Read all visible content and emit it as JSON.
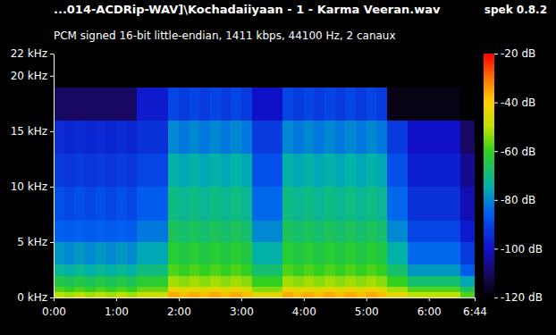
{
  "chart_data": {
    "type": "heatmap",
    "title": "...014-ACDRip-WAV]\\Kochadaiiyaan - 1 - Karma Veeran.wav",
    "annotation": "spek 0.8.2",
    "subtitle": "PCM signed 16-bit little-endian, 1411 kbps, 44100 Hz, 2 canaux",
    "xlim": [
      0,
      404
    ],
    "xticks": [
      {
        "value": 0,
        "label": "0:00"
      },
      {
        "value": 60,
        "label": "1:00"
      },
      {
        "value": 120,
        "label": "2:00"
      },
      {
        "value": 180,
        "label": "3:00"
      },
      {
        "value": 240,
        "label": "4:00"
      },
      {
        "value": 300,
        "label": "5:00"
      },
      {
        "value": 360,
        "label": "6:00"
      },
      {
        "value": 404,
        "label": "6:44"
      }
    ],
    "ylim": [
      0,
      22
    ],
    "yticks": [
      {
        "value": 0,
        "label": "0 kHz"
      },
      {
        "value": 5,
        "label": "5 kHz"
      },
      {
        "value": 10,
        "label": "10 kHz"
      },
      {
        "value": 15,
        "label": "15 kHz"
      },
      {
        "value": 20,
        "label": "20 kHz"
      },
      {
        "value": 22,
        "label": "22 kHz"
      }
    ],
    "colorbar_range": [
      -120,
      -20
    ],
    "colorbar_ticks": [
      {
        "value": -20,
        "label": "-20 dB"
      },
      {
        "value": -40,
        "label": "-40 dB"
      },
      {
        "value": -60,
        "label": "-60 dB"
      },
      {
        "value": -80,
        "label": "-80 dB"
      },
      {
        "value": -100,
        "label": "-100 dB"
      },
      {
        "value": -120,
        "label": "-120 dB"
      }
    ],
    "x_edges": [
      0,
      10,
      20,
      30,
      40,
      50,
      60,
      70,
      80,
      90,
      100,
      110,
      120,
      130,
      140,
      150,
      160,
      170,
      180,
      190,
      200,
      210,
      220,
      230,
      240,
      250,
      260,
      270,
      280,
      290,
      300,
      310,
      320,
      330,
      340,
      350,
      360,
      370,
      380,
      390,
      400,
      404
    ],
    "y_edges": [
      0,
      0.5,
      1,
      2,
      3,
      5,
      7,
      10,
      13,
      16,
      19,
      22
    ],
    "cells": [
      [
        -50,
        -58,
        -64,
        -72,
        -78,
        -85,
        -88,
        -92,
        -95,
        -110,
        -120
      ],
      [
        -52,
        -60,
        -66,
        -74,
        -80,
        -86,
        -90,
        -93,
        -96,
        -110,
        -120
      ],
      [
        -50,
        -58,
        -64,
        -72,
        -78,
        -85,
        -88,
        -92,
        -95,
        -110,
        -120
      ],
      [
        -52,
        -60,
        -66,
        -74,
        -80,
        -86,
        -90,
        -93,
        -96,
        -110,
        -120
      ],
      [
        -50,
        -58,
        -64,
        -72,
        -78,
        -85,
        -88,
        -92,
        -95,
        -110,
        -120
      ],
      [
        -52,
        -60,
        -66,
        -74,
        -80,
        -86,
        -90,
        -93,
        -96,
        -110,
        -120
      ],
      [
        -50,
        -58,
        -64,
        -72,
        -78,
        -85,
        -88,
        -92,
        -95,
        -110,
        -120
      ],
      [
        -52,
        -60,
        -66,
        -74,
        -80,
        -86,
        -90,
        -93,
        -96,
        -110,
        -120
      ],
      [
        -48,
        -56,
        -62,
        -70,
        -76,
        -82,
        -86,
        -90,
        -94,
        -98,
        -120
      ],
      [
        -48,
        -56,
        -62,
        -70,
        -76,
        -82,
        -86,
        -90,
        -94,
        -98,
        -120
      ],
      [
        -48,
        -56,
        -62,
        -70,
        -76,
        -82,
        -86,
        -90,
        -94,
        -98,
        -120
      ],
      [
        -36,
        -44,
        -52,
        -58,
        -62,
        -66,
        -70,
        -74,
        -80,
        -90,
        -120
      ],
      [
        -38,
        -46,
        -54,
        -60,
        -64,
        -68,
        -72,
        -76,
        -82,
        -92,
        -120
      ],
      [
        -36,
        -44,
        -52,
        -58,
        -62,
        -66,
        -70,
        -74,
        -80,
        -90,
        -120
      ],
      [
        -38,
        -46,
        -54,
        -60,
        -64,
        -68,
        -72,
        -76,
        -82,
        -92,
        -120
      ],
      [
        -36,
        -44,
        -52,
        -58,
        -62,
        -66,
        -70,
        -74,
        -80,
        -90,
        -120
      ],
      [
        -38,
        -46,
        -54,
        -60,
        -64,
        -68,
        -72,
        -76,
        -82,
        -92,
        -120
      ],
      [
        -36,
        -44,
        -52,
        -58,
        -62,
        -66,
        -70,
        -74,
        -80,
        -90,
        -120
      ],
      [
        -38,
        -46,
        -54,
        -60,
        -64,
        -68,
        -72,
        -76,
        -82,
        -92,
        -120
      ],
      [
        -45,
        -54,
        -60,
        -68,
        -74,
        -80,
        -84,
        -88,
        -92,
        -100,
        -120
      ],
      [
        -45,
        -54,
        -60,
        -68,
        -74,
        -80,
        -84,
        -88,
        -92,
        -100,
        -120
      ],
      [
        -45,
        -54,
        -60,
        -68,
        -74,
        -80,
        -84,
        -88,
        -92,
        -100,
        -120
      ],
      [
        -36,
        -44,
        -52,
        -58,
        -62,
        -66,
        -70,
        -74,
        -80,
        -90,
        -120
      ],
      [
        -38,
        -46,
        -54,
        -60,
        -64,
        -68,
        -72,
        -76,
        -82,
        -92,
        -120
      ],
      [
        -36,
        -44,
        -52,
        -58,
        -62,
        -66,
        -70,
        -74,
        -80,
        -90,
        -120
      ],
      [
        -38,
        -46,
        -54,
        -60,
        -64,
        -68,
        -72,
        -76,
        -82,
        -92,
        -120
      ],
      [
        -36,
        -44,
        -52,
        -58,
        -62,
        -66,
        -70,
        -74,
        -80,
        -90,
        -120
      ],
      [
        -38,
        -46,
        -54,
        -60,
        -64,
        -68,
        -72,
        -76,
        -82,
        -92,
        -120
      ],
      [
        -36,
        -44,
        -52,
        -58,
        -62,
        -66,
        -70,
        -74,
        -80,
        -90,
        -120
      ],
      [
        -38,
        -46,
        -54,
        -60,
        -64,
        -68,
        -72,
        -76,
        -82,
        -92,
        -120
      ],
      [
        -36,
        -44,
        -52,
        -58,
        -62,
        -66,
        -70,
        -74,
        -80,
        -90,
        -120
      ],
      [
        -38,
        -46,
        -54,
        -60,
        -64,
        -68,
        -72,
        -76,
        -82,
        -92,
        -120
      ],
      [
        -44,
        -52,
        -60,
        -68,
        -74,
        -80,
        -84,
        -88,
        -92,
        -118,
        -120
      ],
      [
        -44,
        -52,
        -60,
        -68,
        -74,
        -80,
        -84,
        -88,
        -92,
        -118,
        -120
      ],
      [
        -50,
        -58,
        -68,
        -78,
        -84,
        -90,
        -94,
        -97,
        -100,
        -118,
        -120
      ],
      [
        -50,
        -58,
        -68,
        -78,
        -84,
        -90,
        -94,
        -97,
        -100,
        -118,
        -120
      ],
      [
        -50,
        -58,
        -68,
        -78,
        -84,
        -90,
        -94,
        -97,
        -100,
        -118,
        -120
      ],
      [
        -50,
        -58,
        -68,
        -78,
        -84,
        -90,
        -94,
        -97,
        -100,
        -118,
        -120
      ],
      [
        -50,
        -58,
        -68,
        -78,
        -84,
        -90,
        -94,
        -97,
        -100,
        -118,
        -120
      ],
      [
        -58,
        -66,
        -76,
        -86,
        -92,
        -98,
        -102,
        -106,
        -110,
        -120,
        -120
      ],
      [
        -58,
        -66,
        -76,
        -86,
        -92,
        -98,
        -102,
        -106,
        -110,
        -120,
        -120
      ]
    ]
  }
}
